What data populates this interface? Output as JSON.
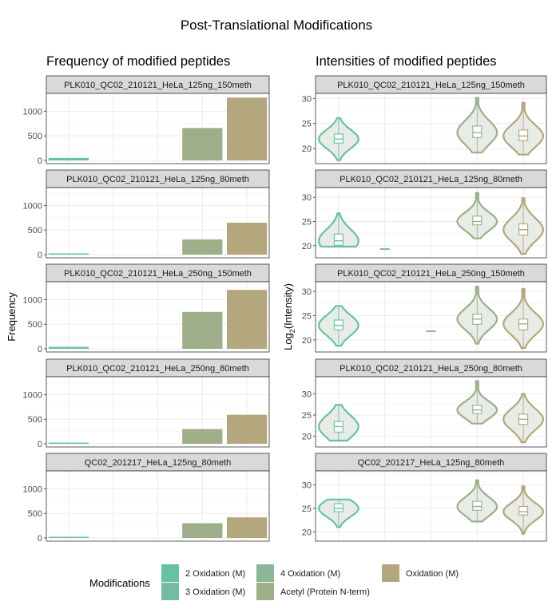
{
  "title": "Post-Translational Modifications",
  "left_title": "Frequency of modified peptides",
  "right_title": "Intensities of modified peptides",
  "left_ylabel": "Frequency",
  "right_ylabel": "Log",
  "right_ylabel_sub": "2",
  "right_ylabel_rest": "(Intensity)",
  "legend": {
    "title": "Modifications",
    "items": [
      {
        "label": "2 Oxidation (M)",
        "color": "#66c2a5"
      },
      {
        "label": "3 Oxidation (M)",
        "color": "#75bb9f"
      },
      {
        "label": "4 Oxidation (M)",
        "color": "#8db597"
      },
      {
        "label": "Acetyl (Protein N-term)",
        "color": "#9dae89"
      },
      {
        "label": "Oxidation (M)",
        "color": "#b4a67d"
      }
    ]
  },
  "chart_data": [
    {
      "type": "bar",
      "title": "Frequency of modified peptides",
      "ylabel": "Frequency",
      "ylim": [
        0,
        1300
      ],
      "yticks": [
        0,
        500,
        1000
      ],
      "categories": [
        "2 Oxidation (M)",
        "3 Oxidation (M)",
        "4 Oxidation (M)",
        "Acetyl (Protein N-term)",
        "Oxidation (M)"
      ],
      "facets": [
        {
          "strip": "PLK010_QC02_210121_HeLa_125ng_150meth",
          "values": [
            50,
            0,
            0,
            660,
            1280
          ]
        },
        {
          "strip": "PLK010_QC02_210121_HeLa_125ng_80meth",
          "values": [
            20,
            0,
            0,
            310,
            650
          ]
        },
        {
          "strip": "PLK010_QC02_210121_HeLa_250ng_150meth",
          "values": [
            40,
            0,
            0,
            750,
            1200
          ]
        },
        {
          "strip": "PLK010_QC02_210121_HeLa_250ng_80meth",
          "values": [
            15,
            0,
            0,
            300,
            590
          ]
        },
        {
          "strip": "QC02_201217_HeLa_125ng_80meth",
          "values": [
            5,
            0,
            0,
            300,
            420
          ]
        }
      ]
    },
    {
      "type": "violin",
      "title": "Intensities of modified peptides",
      "ylabel": "Log2(Intensity)",
      "yticks": [
        20,
        25,
        30
      ],
      "categories": [
        "2 Oxidation (M)",
        "3 Oxidation (M)",
        "4 Oxidation (M)",
        "Acetyl (Protein N-term)",
        "Oxidation (M)"
      ],
      "facets": [
        {
          "strip": "PLK010_QC02_210121_HeLa_125ng_150meth",
          "ylim": [
            17,
            31
          ],
          "violins": [
            {
              "category": "2 Oxidation (M)",
              "min": 17.7,
              "q1": 21.1,
              "median": 21.9,
              "q3": 22.9,
              "max": 26.1
            },
            {
              "category": "Acetyl (Protein N-term)",
              "min": 19.2,
              "q1": 22.2,
              "median": 23.2,
              "q3": 24.5,
              "max": 30.1
            },
            {
              "category": "Oxidation (M)",
              "min": 18.8,
              "q1": 21.6,
              "median": 22.5,
              "q3": 23.7,
              "max": 29.1
            }
          ]
        },
        {
          "strip": "PLK010_QC02_210121_HeLa_125ng_80meth",
          "ylim": [
            17.5,
            32
          ],
          "violins": [
            {
              "category": "2 Oxidation (M)",
              "min": 19.8,
              "q1": 20.1,
              "median": 21.0,
              "q3": 22.4,
              "max": 26.7
            },
            {
              "category": "3 Oxidation (M)",
              "min": 19.3,
              "q1": 19.3,
              "median": 19.3,
              "q3": 19.3,
              "max": 19.3
            },
            {
              "category": "Acetyl (Protein N-term)",
              "min": 21.5,
              "q1": 24.3,
              "median": 25.0,
              "q3": 26.1,
              "max": 30.9
            },
            {
              "category": "Oxidation (M)",
              "min": 18.3,
              "q1": 22.2,
              "median": 23.3,
              "q3": 24.5,
              "max": 29.8
            }
          ]
        },
        {
          "strip": "PLK010_QC02_210121_HeLa_250ng_150meth",
          "ylim": [
            17.5,
            32
          ],
          "violins": [
            {
              "category": "2 Oxidation (M)",
              "min": 18.8,
              "q1": 22.1,
              "median": 23.0,
              "q3": 24.1,
              "max": 27.0
            },
            {
              "category": "4 Oxidation (M)",
              "min": 21.8,
              "q1": 21.8,
              "median": 21.8,
              "q3": 21.8,
              "max": 21.8
            },
            {
              "category": "Acetyl (Protein N-term)",
              "min": 19.2,
              "q1": 23.2,
              "median": 24.3,
              "q3": 25.3,
              "max": 31.0
            },
            {
              "category": "Oxidation (M)",
              "min": 18.3,
              "q1": 22.1,
              "median": 23.3,
              "q3": 24.3,
              "max": 30.5
            }
          ]
        },
        {
          "strip": "PLK010_QC02_210121_HeLa_250ng_80meth",
          "ylim": [
            17.5,
            34
          ],
          "violins": [
            {
              "category": "2 Oxidation (M)",
              "min": 19.0,
              "q1": 21.0,
              "median": 22.3,
              "q3": 23.5,
              "max": 27.4
            },
            {
              "category": "Acetyl (Protein N-term)",
              "min": 23.0,
              "q1": 25.4,
              "median": 26.2,
              "q3": 27.3,
              "max": 33.0
            },
            {
              "category": "Oxidation (M)",
              "min": 18.6,
              "q1": 22.8,
              "median": 24.0,
              "q3": 25.2,
              "max": 30.0
            }
          ]
        },
        {
          "strip": "QC02_201217_HeLa_125ng_80meth",
          "ylim": [
            18,
            33
          ],
          "violins": [
            {
              "category": "2 Oxidation (M)",
              "min": 21.0,
              "q1": 24.3,
              "median": 25.0,
              "q3": 26.0,
              "max": 26.9
            },
            {
              "category": "Acetyl (Protein N-term)",
              "min": 22.2,
              "q1": 24.6,
              "median": 25.4,
              "q3": 26.5,
              "max": 31.0
            },
            {
              "category": "Oxidation (M)",
              "min": 19.6,
              "q1": 23.6,
              "median": 24.3,
              "q3": 25.4,
              "max": 29.7
            }
          ]
        }
      ]
    }
  ]
}
